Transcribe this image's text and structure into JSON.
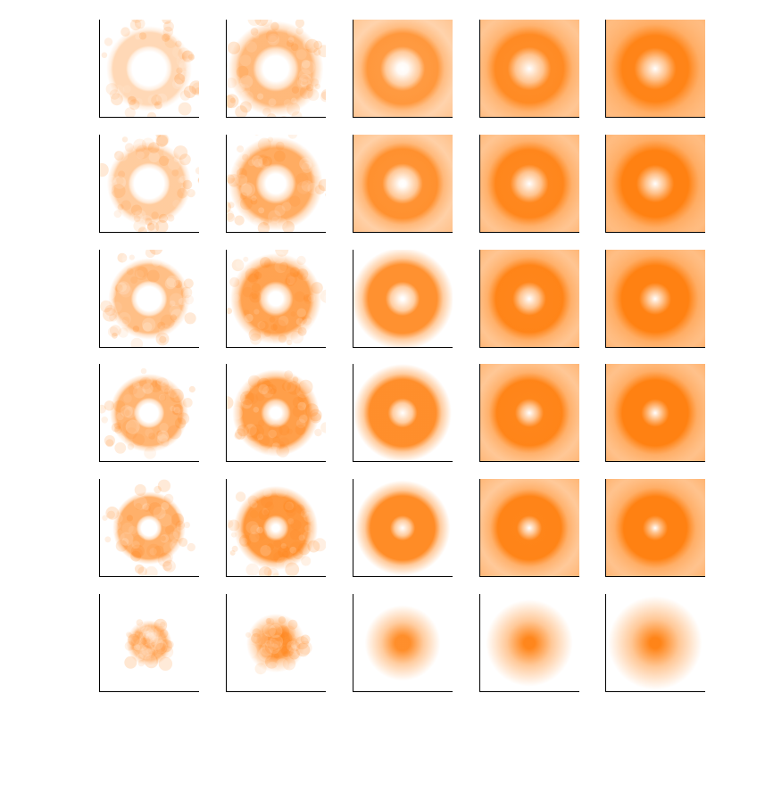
{
  "chart_data": {
    "type": "heatmap",
    "title": "",
    "xlabel": "",
    "ylabel": "",
    "rows": 6,
    "cols": 5,
    "colormap": {
      "low": "#ffffff",
      "high": "#ff7f0e"
    },
    "panels": [
      {
        "row": 0,
        "col": 0,
        "shape": "ring",
        "inner_radius": 0.3,
        "outer_radius": 0.55,
        "blur": 0.06,
        "density": 0.3
      },
      {
        "row": 0,
        "col": 1,
        "shape": "ring",
        "inner_radius": 0.28,
        "outer_radius": 0.58,
        "blur": 0.1,
        "density": 0.55
      },
      {
        "row": 0,
        "col": 2,
        "shape": "ring",
        "inner_radius": 0.24,
        "outer_radius": 0.6,
        "blur": 0.16,
        "density": 0.75
      },
      {
        "row": 0,
        "col": 3,
        "shape": "ring",
        "inner_radius": 0.2,
        "outer_radius": 0.62,
        "blur": 0.22,
        "density": 0.88
      },
      {
        "row": 0,
        "col": 4,
        "shape": "ring",
        "inner_radius": 0.16,
        "outer_radius": 0.64,
        "blur": 0.28,
        "density": 0.95
      },
      {
        "row": 1,
        "col": 0,
        "shape": "ring",
        "inner_radius": 0.27,
        "outer_radius": 0.54,
        "blur": 0.06,
        "density": 0.4
      },
      {
        "row": 1,
        "col": 1,
        "shape": "ring",
        "inner_radius": 0.24,
        "outer_radius": 0.57,
        "blur": 0.1,
        "density": 0.65
      },
      {
        "row": 1,
        "col": 2,
        "shape": "ring",
        "inner_radius": 0.21,
        "outer_radius": 0.59,
        "blur": 0.16,
        "density": 0.82
      },
      {
        "row": 1,
        "col": 3,
        "shape": "ring",
        "inner_radius": 0.17,
        "outer_radius": 0.61,
        "blur": 0.21,
        "density": 0.92
      },
      {
        "row": 1,
        "col": 4,
        "shape": "ring",
        "inner_radius": 0.14,
        "outer_radius": 0.63,
        "blur": 0.26,
        "density": 0.98
      },
      {
        "row": 2,
        "col": 0,
        "shape": "ring",
        "inner_radius": 0.23,
        "outer_radius": 0.52,
        "blur": 0.06,
        "density": 0.5
      },
      {
        "row": 2,
        "col": 1,
        "shape": "ring",
        "inner_radius": 0.2,
        "outer_radius": 0.55,
        "blur": 0.1,
        "density": 0.72
      },
      {
        "row": 2,
        "col": 2,
        "shape": "ring",
        "inner_radius": 0.17,
        "outer_radius": 0.58,
        "blur": 0.15,
        "density": 0.86
      },
      {
        "row": 2,
        "col": 3,
        "shape": "ring",
        "inner_radius": 0.14,
        "outer_radius": 0.6,
        "blur": 0.2,
        "density": 0.94
      },
      {
        "row": 2,
        "col": 4,
        "shape": "ring",
        "inner_radius": 0.11,
        "outer_radius": 0.62,
        "blur": 0.24,
        "density": 0.98
      },
      {
        "row": 3,
        "col": 0,
        "shape": "ring",
        "inner_radius": 0.19,
        "outer_radius": 0.5,
        "blur": 0.06,
        "density": 0.58
      },
      {
        "row": 3,
        "col": 1,
        "shape": "ring",
        "inner_radius": 0.17,
        "outer_radius": 0.53,
        "blur": 0.09,
        "density": 0.75
      },
      {
        "row": 3,
        "col": 2,
        "shape": "ring",
        "inner_radius": 0.14,
        "outer_radius": 0.56,
        "blur": 0.14,
        "density": 0.88
      },
      {
        "row": 3,
        "col": 3,
        "shape": "ring",
        "inner_radius": 0.11,
        "outer_radius": 0.58,
        "blur": 0.19,
        "density": 0.94
      },
      {
        "row": 3,
        "col": 4,
        "shape": "ring",
        "inner_radius": 0.09,
        "outer_radius": 0.6,
        "blur": 0.22,
        "density": 0.98
      },
      {
        "row": 4,
        "col": 0,
        "shape": "ring",
        "inner_radius": 0.16,
        "outer_radius": 0.47,
        "blur": 0.05,
        "density": 0.62
      },
      {
        "row": 4,
        "col": 1,
        "shape": "ring",
        "inner_radius": 0.14,
        "outer_radius": 0.51,
        "blur": 0.09,
        "density": 0.8
      },
      {
        "row": 4,
        "col": 2,
        "shape": "ring",
        "inner_radius": 0.11,
        "outer_radius": 0.54,
        "blur": 0.14,
        "density": 0.9
      },
      {
        "row": 4,
        "col": 3,
        "shape": "ring",
        "inner_radius": 0.09,
        "outer_radius": 0.56,
        "blur": 0.18,
        "density": 0.95
      },
      {
        "row": 4,
        "col": 4,
        "shape": "ring",
        "inner_radius": 0.07,
        "outer_radius": 0.58,
        "blur": 0.22,
        "density": 0.98
      },
      {
        "row": 5,
        "col": 0,
        "shape": "disk",
        "inner_radius": 0.0,
        "outer_radius": 0.28,
        "blur": 0.03,
        "density": 0.55
      },
      {
        "row": 5,
        "col": 1,
        "shape": "disk",
        "inner_radius": 0.0,
        "outer_radius": 0.3,
        "blur": 0.08,
        "density": 0.78
      },
      {
        "row": 5,
        "col": 2,
        "shape": "disk",
        "inner_radius": 0.0,
        "outer_radius": 0.3,
        "blur": 0.16,
        "density": 0.88
      },
      {
        "row": 5,
        "col": 3,
        "shape": "disk",
        "inner_radius": 0.0,
        "outer_radius": 0.32,
        "blur": 0.2,
        "density": 0.94
      },
      {
        "row": 5,
        "col": 4,
        "shape": "disk",
        "inner_radius": 0.0,
        "outer_radius": 0.34,
        "blur": 0.22,
        "density": 0.96
      }
    ]
  }
}
